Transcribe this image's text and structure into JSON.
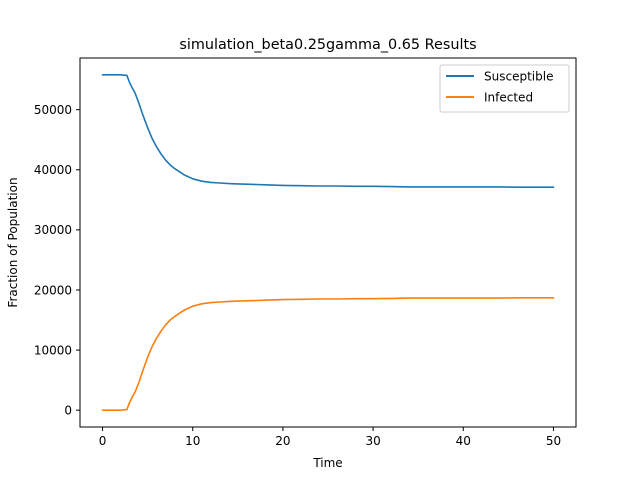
{
  "chart_data": {
    "type": "line",
    "title": "simulation_beta0.25gamma_0.65 Results",
    "xlabel": "Time",
    "ylabel": "Fraction of Population",
    "xlim": [
      -2.5,
      52.5
    ],
    "ylim": [
      -2800,
      58600
    ],
    "xticks": [
      0,
      10,
      20,
      30,
      40,
      50
    ],
    "yticks": [
      0,
      10000,
      20000,
      30000,
      40000,
      50000
    ],
    "grid": false,
    "legend_position": "top-right",
    "series": [
      {
        "name": "Susceptible",
        "color": "#1f77b4",
        "x": [
          0,
          1,
          2,
          2.7,
          3,
          3.3,
          3.6,
          4,
          4.5,
          5,
          5.5,
          6,
          6.5,
          7,
          7.5,
          8,
          9,
          10,
          11,
          12,
          13,
          14,
          15,
          16,
          17,
          18,
          20,
          22,
          24,
          26,
          28,
          30,
          32,
          34,
          36,
          38,
          40,
          42,
          44,
          46,
          48,
          50
        ],
        "y": [
          55800,
          55800,
          55800,
          55700,
          54500,
          53600,
          52800,
          51200,
          49000,
          47000,
          45200,
          43800,
          42600,
          41600,
          40800,
          40200,
          39200,
          38500,
          38100,
          37900,
          37800,
          37700,
          37650,
          37600,
          37550,
          37500,
          37400,
          37350,
          37300,
          37300,
          37250,
          37250,
          37200,
          37150,
          37150,
          37150,
          37150,
          37150,
          37150,
          37100,
          37100,
          37100
        ]
      },
      {
        "name": "Infected",
        "color": "#ff7f0e",
        "x": [
          0,
          1,
          2,
          2.7,
          3,
          3.3,
          3.6,
          4,
          4.5,
          5,
          5.5,
          6,
          6.5,
          7,
          7.5,
          8,
          9,
          10,
          11,
          12,
          13,
          14,
          15,
          16,
          17,
          18,
          20,
          22,
          24,
          26,
          28,
          30,
          32,
          34,
          36,
          38,
          40,
          42,
          44,
          46,
          48,
          50
        ],
        "y": [
          0,
          0,
          0,
          100,
          1300,
          2200,
          3000,
          4500,
          6700,
          8800,
          10600,
          12000,
          13200,
          14200,
          15000,
          15600,
          16600,
          17300,
          17700,
          17900,
          18000,
          18100,
          18150,
          18200,
          18250,
          18300,
          18400,
          18450,
          18500,
          18500,
          18550,
          18550,
          18600,
          18650,
          18650,
          18650,
          18650,
          18650,
          18650,
          18700,
          18700,
          18700
        ]
      }
    ]
  }
}
